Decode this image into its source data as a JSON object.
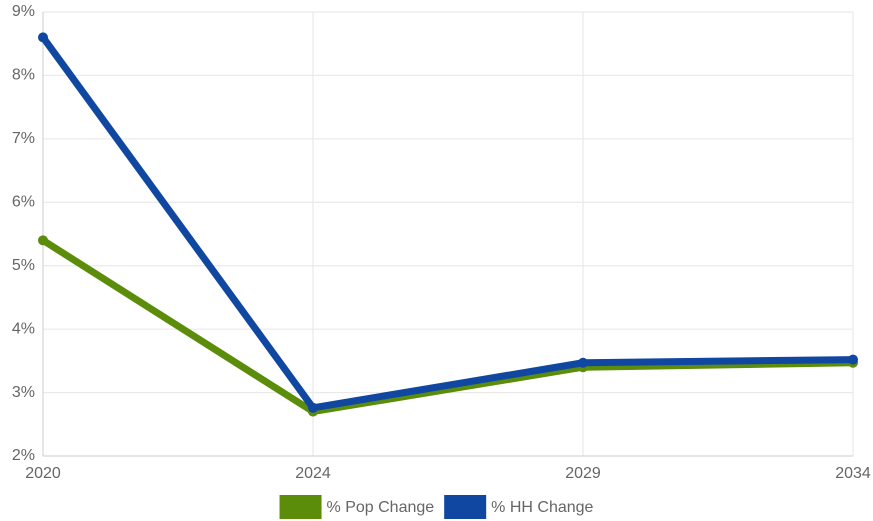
{
  "chart_data": {
    "type": "line",
    "categories": [
      "2020",
      "2024",
      "2029",
      "2034"
    ],
    "series": [
      {
        "name": "% Pop Change",
        "color": "#5b8c0a",
        "values": [
          5.4,
          2.7,
          3.4,
          3.47
        ]
      },
      {
        "name": "% HH Change",
        "color": "#0f47a1",
        "values": [
          8.6,
          2.76,
          3.47,
          3.52
        ]
      }
    ],
    "ylim": [
      2,
      9
    ],
    "yticks": [
      {
        "value": 2,
        "label": "2%"
      },
      {
        "value": 3,
        "label": "3%"
      },
      {
        "value": 4,
        "label": "4%"
      },
      {
        "value": 5,
        "label": "5%"
      },
      {
        "value": 6,
        "label": "6%"
      },
      {
        "value": 7,
        "label": "7%"
      },
      {
        "value": 8,
        "label": "8%"
      },
      {
        "value": 9,
        "label": "9%"
      }
    ],
    "grid": true,
    "legend": "bottom"
  }
}
